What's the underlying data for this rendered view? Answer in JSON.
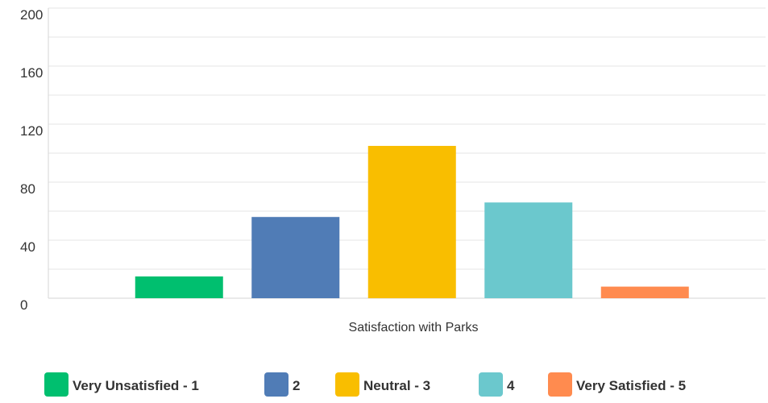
{
  "chart_data": {
    "type": "bar",
    "xlabel": "Satisfaction with Parks",
    "ylabel": "",
    "ylim": [
      0,
      200
    ],
    "y_ticks": [
      0,
      40,
      80,
      120,
      160,
      200
    ],
    "grid": true,
    "legend_position": "bottom",
    "categories": [
      "Very Unsatisfied - 1",
      "2",
      "Neutral - 3",
      "4",
      "Very Satisfied - 5"
    ],
    "values": [
      15,
      56,
      105,
      66,
      8
    ],
    "colors": [
      "#00bf6f",
      "#507cb6",
      "#f9be00",
      "#6bc8cd",
      "#ff8b4f"
    ]
  }
}
